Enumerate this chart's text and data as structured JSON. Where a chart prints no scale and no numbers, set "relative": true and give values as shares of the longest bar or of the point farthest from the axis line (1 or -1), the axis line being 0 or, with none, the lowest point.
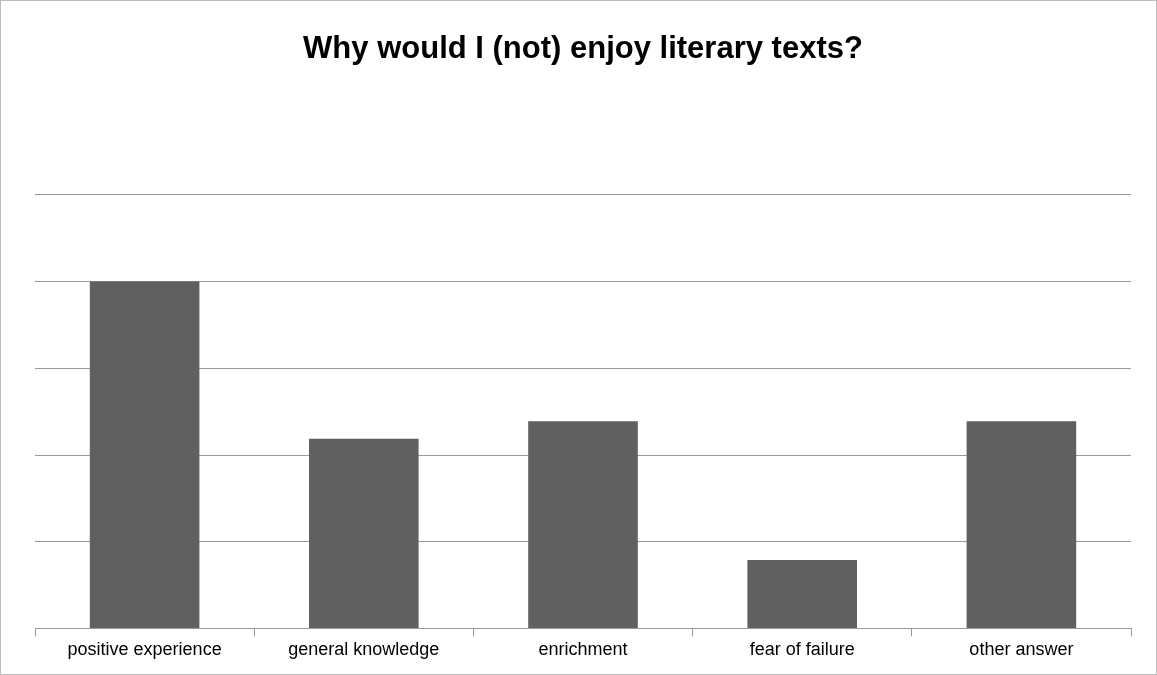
{
  "chart_data": {
    "type": "bar",
    "title": "Why would I (not) enjoy literary texts?",
    "categories": [
      "positive experience",
      "general knowledge",
      "enrichment",
      "fear of failure",
      "other answer"
    ],
    "values": [
      1,
      0.547,
      0.597,
      0.197,
      0.597
    ],
    "color": "#606060",
    "relative": true,
    "grid": "y"
  }
}
